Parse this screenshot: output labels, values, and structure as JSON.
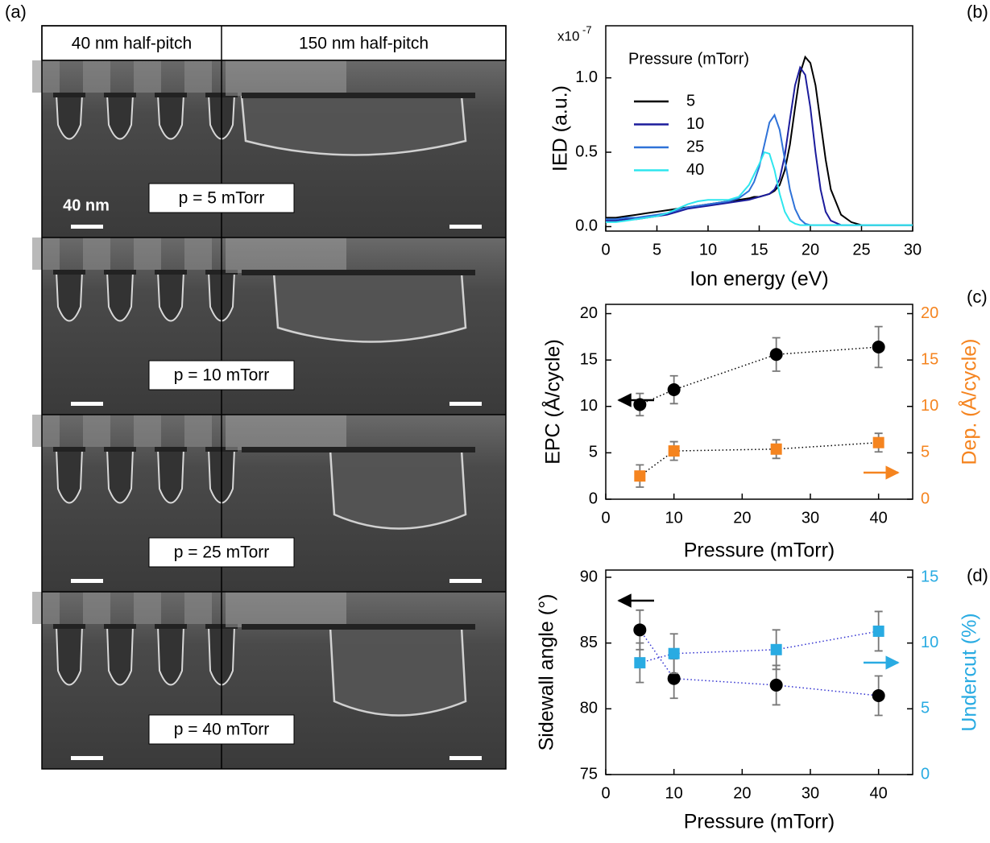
{
  "sem_panel": {
    "panel_label": "(a)",
    "columns": [
      "40 nm half-pitch",
      "150 nm half-pitch"
    ],
    "scale_label": "40 nm",
    "rows": [
      "p = 5 mTorr",
      "p = 10 mTorr",
      "p = 25 mTorr",
      "p = 40 mTorr"
    ]
  },
  "chart_data": [
    {
      "type": "line",
      "panel_label": "(b)",
      "xlabel": "Ion energy (eV)",
      "ylabel": "IED (a.u.)",
      "y_multiplier": {
        "base": "x10",
        "exponent": "-7"
      },
      "legend_title": "Pressure (mTorr)",
      "xlim": [
        0,
        30
      ],
      "xticks": [
        0,
        5,
        10,
        15,
        20,
        25,
        30
      ],
      "ylim": [
        -0.03,
        1.35
      ],
      "yticks": [
        {
          "value": 0,
          "label": "0.0"
        },
        {
          "value": 0.5,
          "label": "0.5"
        },
        {
          "value": 1,
          "label": "1.0"
        }
      ],
      "x": [
        0,
        1,
        2,
        3,
        4,
        5,
        6,
        7,
        8,
        9,
        10,
        11,
        12,
        13,
        14,
        14.5,
        15,
        15.5,
        16,
        16.5,
        17,
        17.5,
        18,
        18.5,
        19,
        19.5,
        20,
        20.5,
        21,
        21.5,
        22,
        23,
        24,
        25,
        26,
        27,
        28,
        29,
        30
      ],
      "series": [
        {
          "name": "5",
          "color": "#000000",
          "values": [
            0.06,
            0.06,
            0.07,
            0.08,
            0.09,
            0.1,
            0.11,
            0.12,
            0.13,
            0.14,
            0.15,
            0.16,
            0.17,
            0.18,
            0.19,
            0.2,
            0.2,
            0.21,
            0.22,
            0.24,
            0.28,
            0.38,
            0.55,
            0.8,
            1.03,
            1.14,
            1.1,
            0.95,
            0.7,
            0.45,
            0.25,
            0.08,
            0.03,
            0.01,
            0.01,
            0.01,
            0.01,
            0.01,
            0.01
          ]
        },
        {
          "name": "10",
          "color": "#1c1c9c",
          "values": [
            0.04,
            0.04,
            0.05,
            0.05,
            0.06,
            0.07,
            0.08,
            0.1,
            0.12,
            0.13,
            0.14,
            0.15,
            0.16,
            0.17,
            0.18,
            0.19,
            0.2,
            0.21,
            0.22,
            0.25,
            0.32,
            0.48,
            0.72,
            0.95,
            1.07,
            1.02,
            0.8,
            0.5,
            0.25,
            0.1,
            0.04,
            0.01,
            0.01,
            0.01,
            0.01,
            0.01,
            0.01,
            0.01,
            0.01
          ]
        },
        {
          "name": "25",
          "color": "#2f72d8",
          "values": [
            0.05,
            0.05,
            0.06,
            0.06,
            0.07,
            0.08,
            0.09,
            0.11,
            0.13,
            0.14,
            0.15,
            0.16,
            0.17,
            0.19,
            0.24,
            0.3,
            0.4,
            0.55,
            0.7,
            0.75,
            0.65,
            0.45,
            0.25,
            0.12,
            0.05,
            0.02,
            0.01,
            0.01,
            0.01,
            0.01,
            0.01,
            0.01,
            0.01,
            0.01,
            0.01,
            0.01,
            0.01,
            0.01,
            0.01
          ]
        },
        {
          "name": "40",
          "color": "#2ee6ee",
          "values": [
            0.03,
            0.03,
            0.04,
            0.05,
            0.06,
            0.07,
            0.09,
            0.12,
            0.15,
            0.17,
            0.18,
            0.18,
            0.18,
            0.2,
            0.28,
            0.35,
            0.42,
            0.5,
            0.49,
            0.38,
            0.22,
            0.1,
            0.04,
            0.02,
            0.01,
            0.01,
            0.01,
            0.01,
            0.01,
            0.01,
            0.01,
            0.01,
            0.01,
            0.01,
            0.01,
            0.01,
            0.01,
            0.01,
            0.01
          ]
        }
      ]
    },
    {
      "type": "scatter",
      "panel_label": "(c)",
      "xlabel": "Pressure (mTorr)",
      "ylabel": "EPC (Å/cycle)",
      "y2label": "Dep. (Å/cycle)",
      "y2_color": "#f5841f",
      "xlim": [
        0,
        45
      ],
      "xticks": [
        0,
        10,
        20,
        30,
        40
      ],
      "ylim": [
        0,
        21
      ],
      "yticks": [
        0,
        5,
        10,
        15,
        20
      ],
      "y2lim": [
        0,
        21
      ],
      "y2ticks": [
        0,
        5,
        10,
        15,
        20
      ],
      "x": [
        5,
        10,
        25,
        40
      ],
      "series": [
        {
          "color": "#000000",
          "marker": "circle",
          "line_color": "#000000",
          "values": [
            10.2,
            11.8,
            15.6,
            16.4
          ],
          "errors": [
            1.2,
            1.5,
            1.8,
            2.2
          ]
        },
        {
          "color": "#f5841f",
          "marker": "square",
          "line_color": "#000000",
          "axis": "y2",
          "values": [
            2.5,
            5.2,
            5.4,
            6.1
          ],
          "errors": [
            1.2,
            1.0,
            1.0,
            1.0
          ]
        }
      ]
    },
    {
      "type": "scatter",
      "panel_label": "(d)",
      "xlabel": "Pressure (mTorr)",
      "ylabel": "Sidewall angle (°)",
      "y2label": "Undercut (%)",
      "y2_color": "#29abe2",
      "xlim": [
        0,
        45
      ],
      "xticks": [
        0,
        10,
        20,
        30,
        40
      ],
      "ylim": [
        75,
        90.55
      ],
      "yticks": [
        75,
        80,
        85,
        90
      ],
      "y2lim": [
        0,
        15.55
      ],
      "y2ticks": [
        0,
        5,
        10,
        15
      ],
      "x": [
        5,
        10,
        25,
        40
      ],
      "series": [
        {
          "color": "#000000",
          "marker": "circle",
          "line_color": "#3030d0",
          "values": [
            86.0,
            82.3,
            81.8,
            81.0
          ],
          "errors": [
            1.5,
            1.5,
            1.5,
            1.5
          ]
        },
        {
          "color": "#29abe2",
          "marker": "square",
          "line_color": "#3030d0",
          "axis": "y2",
          "values": [
            8.5,
            9.2,
            9.5,
            10.9
          ],
          "errors": [
            1.5,
            1.5,
            1.5,
            1.5
          ]
        }
      ]
    }
  ]
}
